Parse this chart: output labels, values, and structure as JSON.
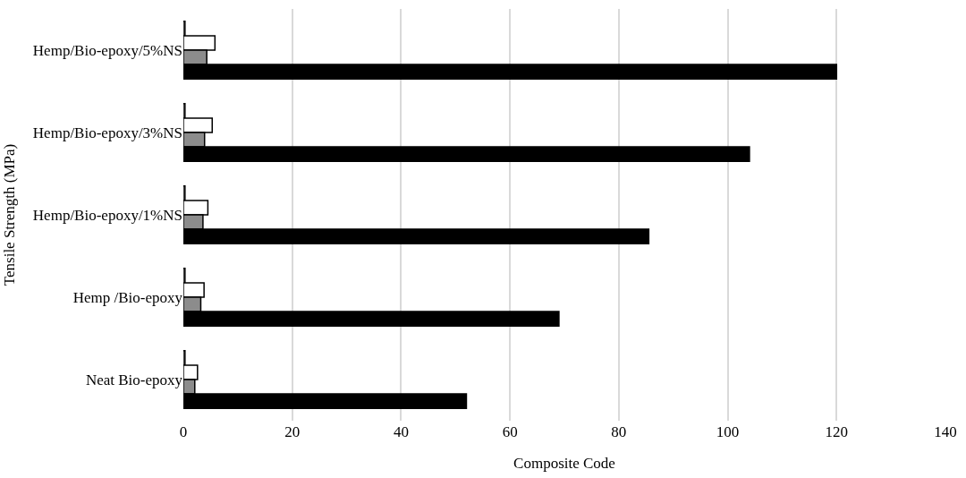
{
  "chart_data": {
    "type": "bar",
    "orientation": "horizontal",
    "xlabel": "Composite Code",
    "ylabel": "Tensile Strength (MPa)",
    "categories": [
      "Hemp/Bio-epoxy/5%NS",
      "Hemp/Bio-epoxy/3%NS",
      "Hemp/Bio-epoxy/1%NS",
      "Hemp /Bio-epoxy",
      "Neat Bio-epoxy"
    ],
    "series": [
      {
        "color": "#ffffff",
        "values": [
          0.3,
          0.3,
          0.3,
          0.3,
          0.3
        ]
      },
      {
        "color": "#ffffff",
        "values": [
          5.8,
          5.3,
          4.5,
          3.8,
          2.6
        ]
      },
      {
        "color": "#8c8c8c",
        "values": [
          4.3,
          3.9,
          3.6,
          3.2,
          2.1
        ]
      },
      {
        "color": "#000000",
        "values": [
          120,
          104,
          85.5,
          69,
          52
        ]
      }
    ],
    "xlim": [
      0,
      140
    ],
    "xticks": [
      0,
      20,
      40,
      60,
      80,
      100,
      120,
      140
    ],
    "grid": "x"
  }
}
